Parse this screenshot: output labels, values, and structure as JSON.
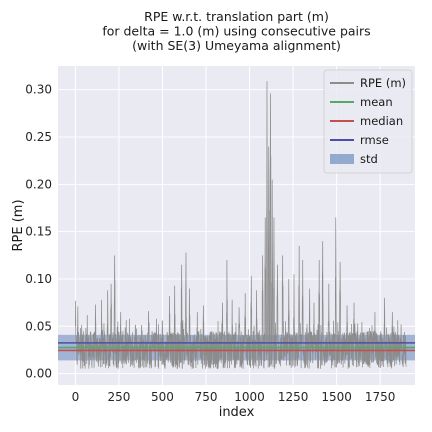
{
  "chart_data": {
    "type": "line",
    "title": [
      "RPE w.r.t. translation part (m)",
      "for delta = 1.0 (m) using consecutive pairs",
      "(with SE(3) Umeyama alignment)"
    ],
    "xlabel": "index",
    "ylabel": "RPE (m)",
    "xlim": [
      -100,
      1950
    ],
    "ylim": [
      -0.012,
      0.325
    ],
    "x_ticks": [
      0,
      250,
      500,
      750,
      1000,
      1250,
      1500,
      1750
    ],
    "y_ticks": [
      0.0,
      0.05,
      0.1,
      0.15,
      0.2,
      0.25,
      0.3
    ],
    "y_tick_labels": [
      "0.00",
      "0.05",
      "0.10",
      "0.15",
      "0.20",
      "0.25",
      "0.30"
    ],
    "grid": true,
    "legend_position": "top-right",
    "n_points": 1900,
    "baseline_noise": {
      "low": 0.005,
      "high": 0.045
    },
    "peaks": [
      [
        1,
        0.077
      ],
      [
        14,
        0.071
      ],
      [
        68,
        0.062
      ],
      [
        115,
        0.073
      ],
      [
        150,
        0.078
      ],
      [
        185,
        0.088
      ],
      [
        205,
        0.095
      ],
      [
        225,
        0.125
      ],
      [
        260,
        0.065
      ],
      [
        310,
        0.058
      ],
      [
        420,
        0.066
      ],
      [
        465,
        0.058
      ],
      [
        540,
        0.082
      ],
      [
        570,
        0.093
      ],
      [
        610,
        0.115
      ],
      [
        635,
        0.128
      ],
      [
        655,
        0.09
      ],
      [
        700,
        0.065
      ],
      [
        735,
        0.072
      ],
      [
        845,
        0.075
      ],
      [
        870,
        0.12
      ],
      [
        900,
        0.078
      ],
      [
        940,
        0.07
      ],
      [
        975,
        0.085
      ],
      [
        1010,
        0.103
      ],
      [
        1040,
        0.088
      ],
      [
        1075,
        0.125
      ],
      [
        1090,
        0.165
      ],
      [
        1100,
        0.309
      ],
      [
        1110,
        0.24
      ],
      [
        1120,
        0.296
      ],
      [
        1130,
        0.205
      ],
      [
        1140,
        0.165
      ],
      [
        1160,
        0.115
      ],
      [
        1190,
        0.125
      ],
      [
        1225,
        0.1
      ],
      [
        1255,
        0.105
      ],
      [
        1285,
        0.135
      ],
      [
        1305,
        0.12
      ],
      [
        1345,
        0.09
      ],
      [
        1370,
        0.075
      ],
      [
        1400,
        0.12
      ],
      [
        1420,
        0.14
      ],
      [
        1455,
        0.095
      ],
      [
        1495,
        0.165
      ],
      [
        1520,
        0.118
      ],
      [
        1560,
        0.072
      ],
      [
        1600,
        0.075
      ],
      [
        1720,
        0.065
      ],
      [
        1775,
        0.08
      ],
      [
        1820,
        0.065
      ],
      [
        1870,
        0.052
      ]
    ],
    "series": [
      {
        "name": "RPE (m)",
        "kind": "line",
        "color": "#8c8c8c"
      },
      {
        "name": "mean",
        "kind": "hline",
        "value": 0.0275,
        "color": "#55a868"
      },
      {
        "name": "median",
        "kind": "hline",
        "value": 0.0245,
        "color": "#c44e52"
      },
      {
        "name": "rmse",
        "kind": "hline",
        "value": 0.0325,
        "color": "#4c4fa5"
      },
      {
        "name": "std",
        "kind": "band",
        "center": 0.0275,
        "halfwidth": 0.0135,
        "color": "#4c72b0"
      }
    ],
    "colors": {
      "plot_background": "#eaeaf2",
      "grid": "#ffffff",
      "text": "#262626"
    }
  }
}
